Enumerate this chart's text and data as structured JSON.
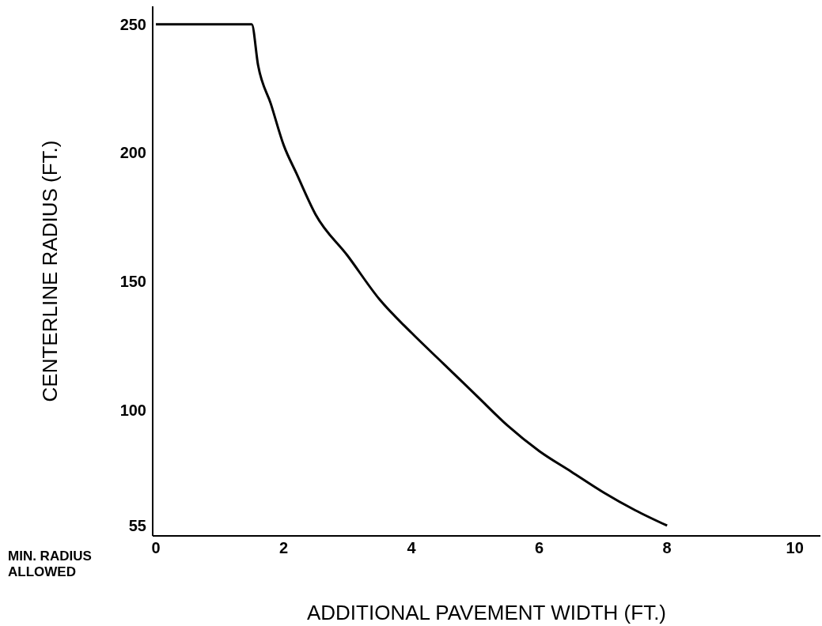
{
  "chart_data": {
    "type": "line",
    "xlabel": "ADDITIONAL PAVEMENT WIDTH  (FT.)",
    "ylabel": "CENTERLINE RADIUS  (FT.)",
    "annotations": [
      "MIN. RADIUS ALLOWED"
    ],
    "series": [
      {
        "color": "#000000",
        "x": [
          0,
          1.5,
          1.6,
          1.8,
          2,
          2.2,
          2.5,
          3,
          3.5,
          4,
          4.5,
          5,
          5.5,
          6,
          6.5,
          7,
          7.5,
          8
        ],
        "values": [
          250,
          250,
          234,
          219,
          203,
          192,
          176,
          160,
          143,
          130,
          118,
          106,
          94,
          84,
          76,
          68,
          61,
          55
        ]
      }
    ],
    "xlim": [
      -0.05,
      10.4
    ],
    "xticks": [
      0,
      2,
      4,
      6,
      8,
      10
    ],
    "ylim": [
      51,
      257
    ],
    "yticks": [
      55,
      100,
      150,
      200,
      250
    ],
    "grid": false,
    "marker": "none",
    "line_style": "solid"
  }
}
